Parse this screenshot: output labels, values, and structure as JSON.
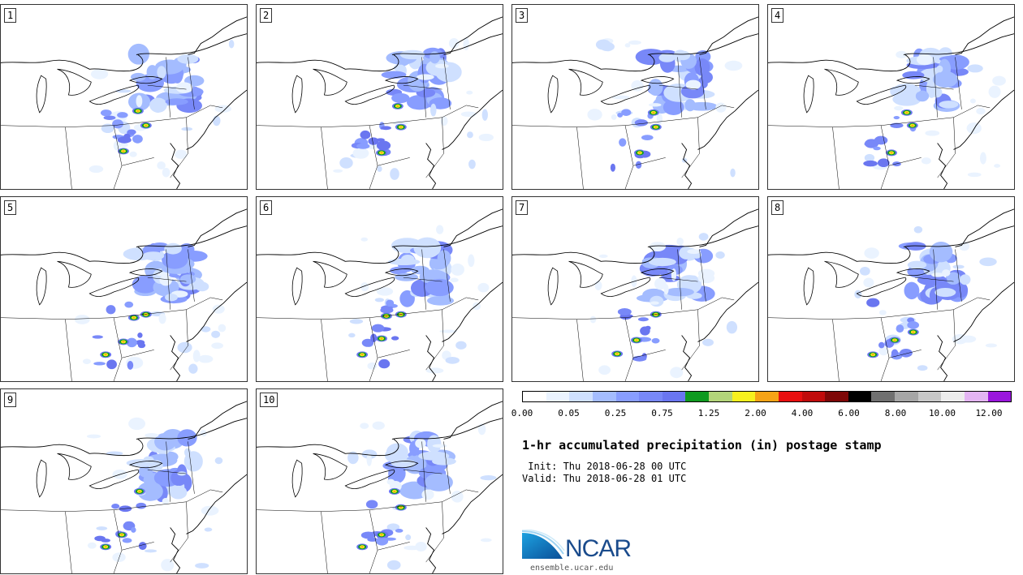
{
  "stamps": [
    {
      "label": "1"
    },
    {
      "label": "2"
    },
    {
      "label": "3"
    },
    {
      "label": "4"
    },
    {
      "label": "5"
    },
    {
      "label": "6"
    },
    {
      "label": "7"
    },
    {
      "label": "8"
    },
    {
      "label": "9"
    },
    {
      "label": "10"
    }
  ],
  "colorbar": {
    "colors": [
      "#ffffff",
      "#eaf3ff",
      "#cfe0ff",
      "#a4bcff",
      "#889dff",
      "#7888f8",
      "#6a76f0",
      "#0f9a20",
      "#b3d47a",
      "#f7f01e",
      "#f6a316",
      "#e80f0f",
      "#c00b0b",
      "#7e0707",
      "#000000",
      "#707070",
      "#a6a6a6",
      "#c8c8c8",
      "#ececec",
      "#e3b4f2",
      "#9a16dc"
    ],
    "tick_labels": [
      "0.00",
      "0.05",
      "0.25",
      "0.75",
      "1.25",
      "2.00",
      "4.00",
      "6.00",
      "8.00",
      "10.00",
      "12.00"
    ]
  },
  "title": "1-hr accumulated precipitation (in) postage stamp",
  "init": " Init: Thu 2018-06-28 00 UTC",
  "valid": "Valid: Thu 2018-06-28 01 UTC",
  "logo": {
    "text": "NCAR",
    "url": "ensemble.ucar.edu",
    "color": "#1a4b8c"
  }
}
